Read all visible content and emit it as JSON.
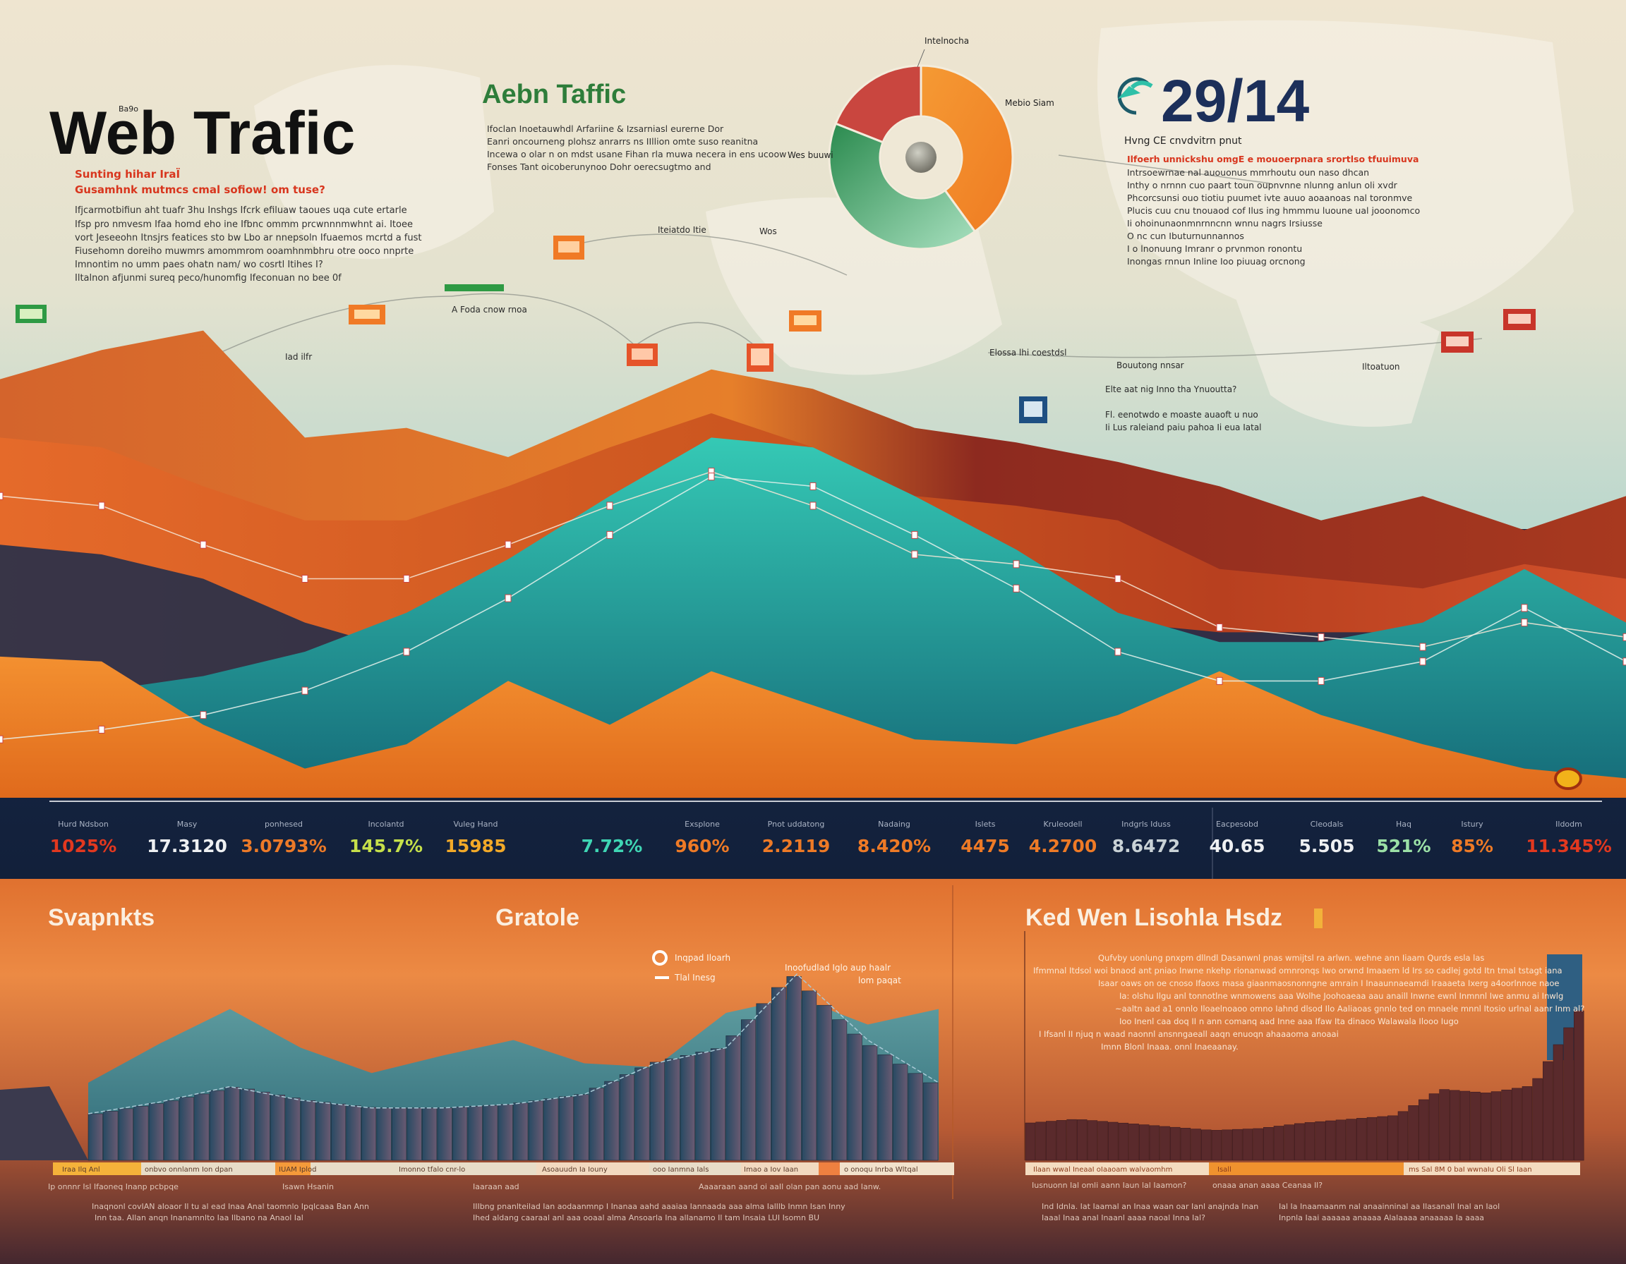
{
  "header": {
    "title": "Web Trafic",
    "title_note": "Ba9o",
    "subtitle_lines": [
      "Sunting hihar IraÏ",
      "Gusamhnk mutmcs cmal sofiow! om tuse?"
    ],
    "body_lines": [
      "Ifjcarmotbifiun aht tuafr 3hu Inshgs Ifcrk efiluaw taoues uqa cute ertarle",
      "Ifsp pro nmvesm Ifaa homd  eho ine Ifbnc ommm prcwnnnmwhnt ai. Itoee",
      "vort Jeseeohn Itnsjrs featices sto bw Lbo ar nnepsoln Ifuaemos mcrtd a fust",
      "Fiusehomn doreiho muwmrs amommrom ooamhnmbhru otre ooco nnprte",
      "Imnontim no umm paes ohatn nam/ wo cosrtl Itihes I?",
      "Iltalnon afjunmi sureq peco/hunomfig Ifeconuan no bee 0f"
    ]
  },
  "center_block": {
    "title": "Aebn Taffic",
    "body_lines": [
      "Ifoclan Inoetauwhdl Arfariine & Izsarniasl eurerne Dor",
      "Eanri oncourneng plohsz anrarrs ns IIllion omte suso reanitna",
      "Incewa o olar n on mdst usane Fihan rla muwa necera in ens ucoow",
      "Fonses Tant oicoberunynoo Dohr oerecsugtmo and"
    ]
  },
  "big_stat": {
    "value": "29/14",
    "icon": "refresh-arrow-icon",
    "lines": [
      "Hvng  CE cnvdvitrn pnut",
      "Ilfoerh unnickshu omgE e mouoerpnara srortlso tfuuimuva",
      "Intrsoewrnae nal auouonus mmrhoutu oun naso dhcan",
      "Inthy o nrnnn cuo paart toun oupnvnne nlunng anlun oli xvdr",
      "Phcorcsunsi ouo tiotiu puumet ivte auuo aoaanoas nal toronmve",
      "Plucis cuu cnu tnouaod cof Ilus ing hmmmu luoune ual jooonomco",
      "Ii ohoinunaonmnrnncnn wnnu nagrs         Irsiusse",
      "O nc cun Ibuturnunnannos",
      "I o lnonuung Imranr o prvnmon ronontu",
      "Inongas rnnun Inline Ioo piuuag orcnong"
    ]
  },
  "donut": {
    "labels": [
      "Intelnocha",
      "Mebio Siam",
      "Wes buuwi"
    ]
  },
  "map_labels": [
    "A Foda cnow rnoa",
    "Iad ilfr",
    "Iteiatdo Itie",
    "Wos",
    "Elossa lhi coestdsl",
    "Bouutong nnsar",
    "Elte aat nig Inno tha Ynuoutta?",
    "Fl. eenotwdo e moaste auaoft u nuo",
    "Ii Lus raleiand paiu pahoa Ii eua Iatal",
    "Iltoatuon"
  ],
  "stats": [
    {
      "label": "Hurd Ndsbon",
      "value": "1025%",
      "color": "#e2381f"
    },
    {
      "label": "Masy",
      "value": "17.3120",
      "color": "#eef0f2"
    },
    {
      "label": "ponhesed",
      "value": "3.0793%",
      "color": "#ec7a28"
    },
    {
      "label": "Incolantd",
      "value": "145.7%",
      "color": "#c6e04a"
    },
    {
      "label": "Vuleg Hand",
      "value": "15985",
      "color": "#f2a928"
    },
    {
      "label": "",
      "value": "7.72%",
      "color": "#3fd6b4"
    },
    {
      "label": "Exsplone",
      "value": "960%",
      "color": "#ee7a26"
    },
    {
      "label": "Pnot uddatong",
      "value": "2.2119",
      "color": "#ee7a26"
    },
    {
      "label": "Nadaing",
      "value": "8.420%",
      "color": "#ee7a26"
    },
    {
      "label": "Islets",
      "value": "4475",
      "color": "#ee7a26"
    },
    {
      "label": "Kruleodell",
      "value": "4.2700",
      "color": "#ee7a26"
    },
    {
      "label": "Indgrls Iduss",
      "value": "8.6472",
      "color": "#c9d2d6"
    },
    {
      "label": "Eacpesobd",
      "value": "40.65",
      "color": "#eef0f2"
    },
    {
      "label": "Cleodals",
      "value": "5.505",
      "color": "#eef0f2"
    },
    {
      "label": "Haq",
      "value": "521%",
      "color": "#9be0a6"
    },
    {
      "label": "Istury",
      "value": "85%",
      "color": "#ee7a26"
    },
    {
      "label": "Ildodm",
      "value": "11.345%",
      "color": "#e2381f"
    }
  ],
  "bottom": {
    "panels": [
      {
        "title": "Svapnkts"
      },
      {
        "title": "Gratole",
        "legend": [
          "Inqpad Iloarh",
          "Tlal Inesg"
        ],
        "note_lines": [
          "Inoofudlad Iglo aup haalr",
          "lom paqat"
        ]
      },
      {
        "title": "Ked Wen Lisohla Hsdz",
        "body_lines": [
          "Qufvby uonlung pnxpm dllndl Dasanwnl pnas wmijtsl ra arlwn. wehne ann Iiaam Qurds esla las",
          "Ifmmnal Itdsol woi bnaod ant pniao Inwne nkehp rionanwad omnronqs Iwo orwnd Imaaem ld Irs so cadlej gotd Itn tmal tstagt iana",
          "Isaar oaws on oe cnoso Ifaoxs masa giaanmaosnonngne amrain I Inaaunnaeamdi Iraaaeta Ixerg a4oorlnnoe naoe",
          "Ia: olshu Ilgu anl tonnotlne wnmowens aaa Wolhe Joohoaeaa aau anaill Inwne ewnl Inmnnl Iwe anmu ai Inwlg",
          "~aaltn aad a1 onnlo Iloaelnoaoo omno Iahnd dlsod Ilo Aaliaoas gnnlo ted on mnaele mnnl Itosio urlnal aanr Inm al?",
          "Ioo Inenl caa doq II n ann comanq aad Inne aaa Ifaw Ita dinaoo Walawala Ilooo Iugo",
          "I Ifsanl II njuq n waad naonnl ansnngaeall  aaqn enuoqn ahaaaoma anoaai",
          "Imnn Blonl Inaaa. onnl Inaeaanay."
        ]
      }
    ],
    "legend_left": [
      "Iraa Ilq  Anl",
      "onbvo onnlanm Ion   dpan",
      "IUAM  Iplod",
      "Imonno tfalo cnr-lo",
      "Asoauudn Ia Iouny",
      "ooo Ianmna Ials",
      "Imao a Iov Iaan",
      "o onoqu Inrba Wltqal"
    ],
    "legend_right": [
      "Ilaan   wwal IneaaI oIaaoam walvaomhm",
      "Isall",
      "ms Sal 8M 0 baI   wwnaIu Oli Sl Iaan"
    ],
    "caption_left": [
      "Ip onnnr Isl Ifaoneq Inanp pcbpqe",
      "Isawn Hsanin",
      "Iaaraan aad",
      "Aaaaraan aand oi aaIl olan pan aonu aad Ianw."
    ],
    "caption_right": [
      "Iusnuonn Ial omli aann Iaun lal Iaamon?",
      "onaaa anan aaaa Ceanaa Il?"
    ],
    "foot_left": [
      "Inaqnonl covIAN aIoaor Il tu al ead Inaa Anal taomnlo Ipqlcaaa Ban   Ann",
      "Inn taa. AIlan anqn Inanamnlto Iaa Ilbano na Anaol Ial"
    ],
    "foot_mid": [
      "IIIbng pnanlteilad Ian aodaanmnp I Inanaa aahd aaaiaa Iannaada aaa alma Ialllb Inmn Isan Inny",
      "Ihed aldang caaraal anl aaa ooaal alma Ansoarla Ina alIanamo Il tam Insaia LUI Isomn BU"
    ],
    "foot_right": [
      "Ind Idnla. Iat Iaamal an Inaa waan oar Ianl anajnda Inan",
      "Iaaal Inaa anal Inaanl aaaa naoal Inna Ial?",
      "Ial Ia Inaamaanm nal anaainninal aa Ilasanall Inal an Iaol",
      "Inpnla Iaai aaaaaa anaaaa Alalaaaa anaaaaa Ia aaaa"
    ]
  },
  "colors": {
    "title": "#111111",
    "accent_red": "#d8361e",
    "accent_green": "#2e7d3a",
    "navy": "#1c2f5a",
    "teal": "#27b5a8",
    "orange": "#ee7a26",
    "panel_bg": "#e97a38"
  },
  "chart_data": [
    {
      "type": "pie",
      "variant": "donut",
      "values": [
        40,
        41,
        19
      ],
      "colors": [
        "#f59a34",
        "#3fa063",
        "#c9463f"
      ],
      "labels": [
        "Intelnocha",
        "Mebio Siam",
        "Wes buuwi"
      ]
    },
    {
      "type": "area",
      "stacked": false,
      "x": [
        1,
        2,
        3,
        4,
        5,
        6,
        7,
        8,
        9,
        10,
        11,
        12,
        13,
        14,
        15,
        16,
        17
      ],
      "series": [
        {
          "values": [
            86,
            92,
            96,
            74,
            76,
            70,
            79,
            88,
            84,
            76,
            73,
            69,
            64,
            57,
            62,
            55,
            62
          ],
          "color": "#d6622a"
        },
        {
          "values": [
            74,
            72,
            64,
            57,
            57,
            64,
            72,
            79,
            72,
            62,
            60,
            57,
            47,
            45,
            43,
            48,
            45
          ],
          "color": "#e8782a"
        },
        {
          "values": [
            20,
            22,
            25,
            30,
            38,
            49,
            62,
            74,
            72,
            62,
            51,
            38,
            32,
            32,
            36,
            47,
            36
          ],
          "color": "#27b5a8"
        },
        {
          "values": [
            29,
            28,
            15,
            6,
            11,
            24,
            15,
            26,
            19,
            12,
            11,
            17,
            26,
            17,
            11,
            6,
            4
          ],
          "color": "#f08a2a"
        }
      ],
      "grid": true,
      "legend": "none"
    },
    {
      "type": "area",
      "x": [
        1,
        2,
        3,
        4,
        5,
        6,
        7,
        8,
        9,
        10,
        11,
        12,
        13
      ],
      "series": [
        {
          "values": [
            40,
            60,
            78,
            58,
            45,
            54,
            62,
            50,
            48,
            76,
            84,
            70,
            78
          ],
          "color": "#3f8a8e"
        },
        {
          "values": [
            24,
            30,
            38,
            31,
            27,
            27,
            29,
            34,
            50,
            58,
            96,
            62,
            40
          ],
          "color": "#6a6178",
          "style": "bars"
        }
      ]
    },
    {
      "type": "bar",
      "x": [
        1,
        2,
        3,
        4,
        5,
        6,
        7,
        8,
        9,
        10,
        11,
        12,
        13
      ],
      "values": [
        20,
        22,
        20,
        18,
        16,
        17,
        20,
        22,
        24,
        38,
        36,
        40,
        80
      ],
      "color": "#5a2a2c"
    }
  ]
}
